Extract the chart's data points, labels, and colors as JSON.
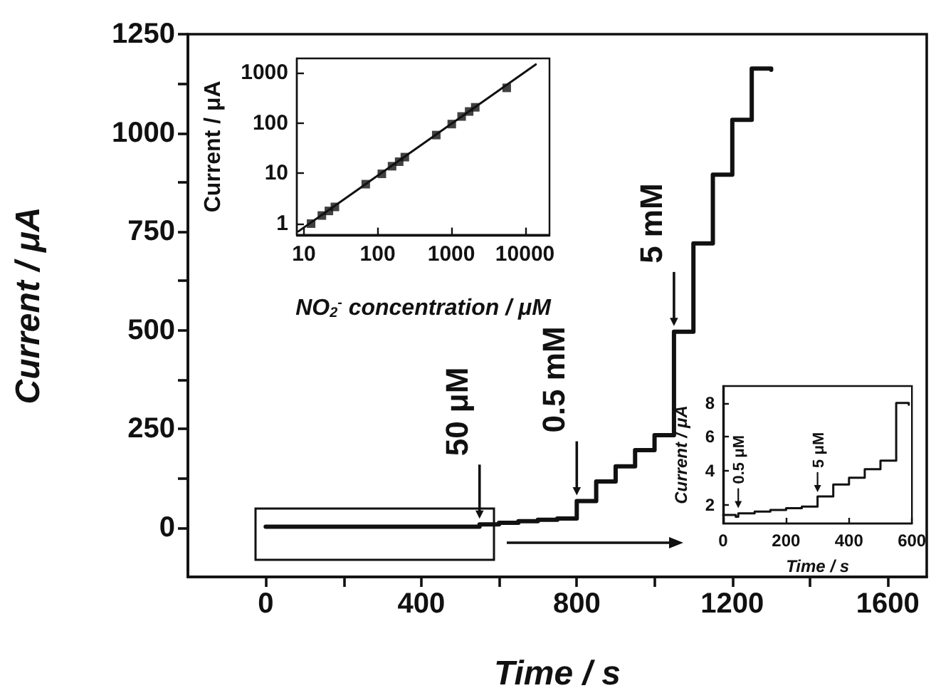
{
  "chart_data": [
    {
      "type": "step",
      "xlabel": "Time / s",
      "ylabel": "Current / μA",
      "color": "#111111",
      "x": [
        0,
        300,
        550,
        600,
        650,
        700,
        750,
        800,
        850,
        900,
        950,
        1000,
        1050,
        1100,
        1150,
        1200,
        1250,
        1300
      ],
      "values": [
        2,
        2,
        8,
        12,
        16,
        20,
        23,
        67,
        117,
        155,
        196,
        234,
        496,
        720,
        894,
        1033,
        1163,
        1160
      ],
      "xlim": [
        -200,
        1700
      ],
      "xticks": [
        0,
        {
          "value": 200,
          "label": null
        },
        400,
        {
          "value": 600,
          "label": null
        },
        800,
        {
          "value": 1000,
          "label": null
        },
        1200,
        {
          "value": 1400,
          "label": null
        },
        1600
      ],
      "ylim": [
        -125,
        1250
      ],
      "yticks": [
        0,
        {
          "value": 125,
          "label": null
        },
        250,
        {
          "value": 375,
          "label": null
        },
        500,
        {
          "value": 625,
          "label": null
        },
        750,
        {
          "value": 875,
          "label": null
        },
        1000,
        {
          "value": 1125,
          "label": null
        },
        1250
      ],
      "annotations": [
        {
          "text": "50 μM",
          "x": 550,
          "y": 8
        },
        {
          "text": "0.5 mM",
          "x": 800,
          "y": 67
        },
        {
          "text": "5 mM",
          "x": 1050,
          "y": 496
        }
      ]
    },
    {
      "type": "scatter",
      "log": "xy",
      "xlabel": "NO$_{2}$$^{-}$ concentration / μM",
      "ylabel": "Current / μA",
      "series": [
        {
          "color": "#111111",
          "marker": "square",
          "x": [
            12.5,
            17.5,
            21.8,
            26.3,
            69,
            114,
            157,
            196,
            234,
            625,
            1014,
            1380,
            1746,
            2113,
            5650
          ],
          "values": [
            1.0,
            1.45,
            1.79,
            2.15,
            6.1,
            9.8,
            13.9,
            17.1,
            21.1,
            58,
            96,
            136,
            171,
            207,
            505
          ]
        },
        {
          "type": "line",
          "color": "#111111",
          "x": [
            8.4,
            14000
          ],
          "values": [
            0.7,
            1480
          ]
        }
      ],
      "xlim": [
        8,
        21500
      ],
      "xticks": [
        10,
        100,
        1000,
        10000
      ],
      "ylim": [
        0.6,
        1950
      ],
      "yticks": [
        1,
        10,
        100,
        1000
      ]
    },
    {
      "type": "step",
      "xlabel": "Time / s",
      "ylabel": "Current / μA",
      "color": "#111111",
      "x": [
        0,
        40,
        48,
        100,
        150,
        200,
        250,
        300,
        350,
        400,
        450,
        500,
        550,
        590
      ],
      "values": [
        1.4,
        1.3,
        1.5,
        1.6,
        1.7,
        1.8,
        1.9,
        2.5,
        3.2,
        3.6,
        4.1,
        4.6,
        8.0,
        7.9
      ],
      "xlim": [
        0,
        600
      ],
      "xticks": [
        0,
        200,
        400,
        600
      ],
      "ylim": [
        0.9,
        9
      ],
      "yticks": [
        2,
        4,
        6,
        8
      ],
      "annotations": [
        {
          "text": "0.5 μM",
          "x": 48,
          "y": 1.55
        },
        {
          "text": "5 μM",
          "x": 300,
          "y": 2.5
        }
      ]
    }
  ]
}
